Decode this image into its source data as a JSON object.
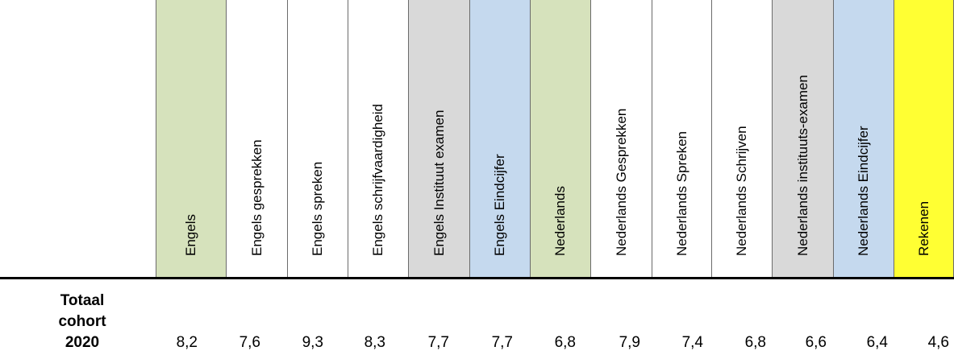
{
  "table": {
    "columns": [
      {
        "label": "Engels",
        "fill": "#d6e2bc"
      },
      {
        "label": "Engels gesprekken",
        "fill": "#ffffff"
      },
      {
        "label": "Engels spreken",
        "fill": "#ffffff"
      },
      {
        "label": "Engels schrijfvaardigheid",
        "fill": "#ffffff"
      },
      {
        "label": "Engels Instituut examen",
        "fill": "#d9d9d9"
      },
      {
        "label": "Engels Eindcijfer",
        "fill": "#c5d9ee"
      },
      {
        "label": "Nederlands",
        "fill": "#d6e2bc"
      },
      {
        "label": "Nederlands Gesprekken",
        "fill": "#ffffff"
      },
      {
        "label": "Nederlands Spreken",
        "fill": "#ffffff"
      },
      {
        "label": "Nederlands Schrijven",
        "fill": "#ffffff"
      },
      {
        "label": "Nederlands instituuts-examen",
        "fill": "#d9d9d9"
      },
      {
        "label": "Nederlands Eindcijfer",
        "fill": "#c5d9ee"
      },
      {
        "label": "Rekenen",
        "fill": "#ffff33"
      }
    ],
    "row": {
      "label_lines": [
        "Totaal",
        "cohort",
        "2020"
      ],
      "values": [
        "8,2",
        "7,6",
        "9,3",
        "8,3",
        "7,7",
        "7,7",
        "6,8",
        "7,9",
        "7,4",
        "6,8",
        "6,6",
        "6,4",
        "4,6"
      ]
    }
  }
}
